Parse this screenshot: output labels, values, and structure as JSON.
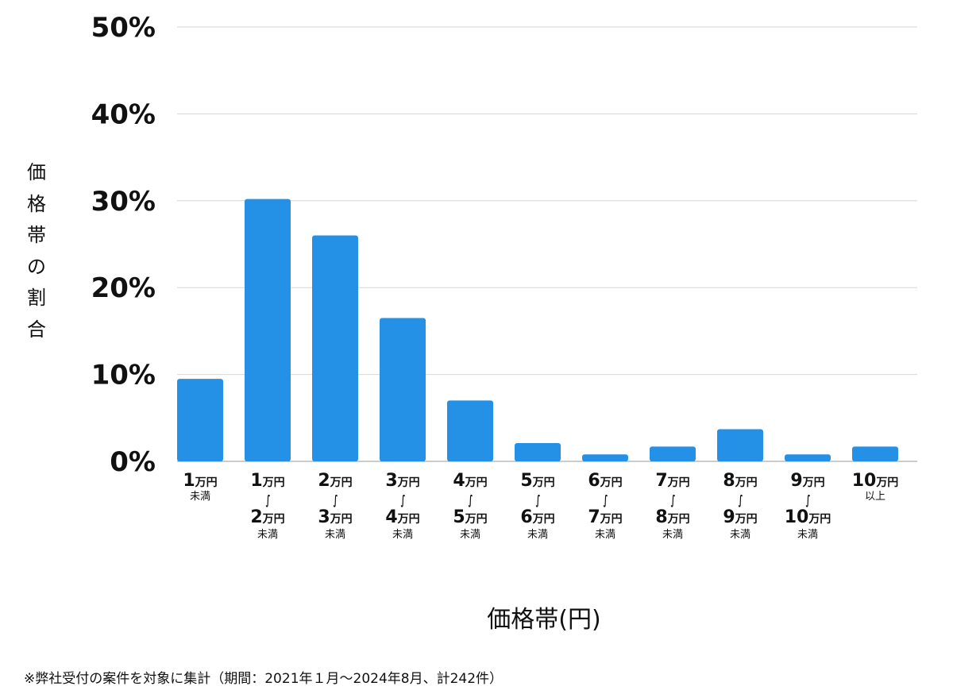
{
  "chart_data": {
    "type": "bar",
    "title": "",
    "ylabel": "価格帯の割合",
    "xlabel": "価格帯(円)",
    "ylim": [
      0,
      50
    ],
    "yticks": [
      "0%",
      "10%",
      "20%",
      "30%",
      "40%",
      "50%"
    ],
    "grid": true,
    "bar_color": "#2491e6",
    "categories": [
      {
        "from": "1",
        "from_unit": "万円",
        "to": "",
        "to_unit": "",
        "suffix": "未満"
      },
      {
        "from": "1",
        "from_unit": "万円",
        "to": "2",
        "to_unit": "万円",
        "suffix": "未満"
      },
      {
        "from": "2",
        "from_unit": "万円",
        "to": "3",
        "to_unit": "万円",
        "suffix": "未満"
      },
      {
        "from": "3",
        "from_unit": "万円",
        "to": "4",
        "to_unit": "万円",
        "suffix": "未満"
      },
      {
        "from": "4",
        "from_unit": "万円",
        "to": "5",
        "to_unit": "万円",
        "suffix": "未満"
      },
      {
        "from": "5",
        "from_unit": "万円",
        "to": "6",
        "to_unit": "万円",
        "suffix": "未満"
      },
      {
        "from": "6",
        "from_unit": "万円",
        "to": "7",
        "to_unit": "万円",
        "suffix": "未満"
      },
      {
        "from": "7",
        "from_unit": "万円",
        "to": "8",
        "to_unit": "万円",
        "suffix": "未満"
      },
      {
        "from": "8",
        "from_unit": "万円",
        "to": "9",
        "to_unit": "万円",
        "suffix": "未満"
      },
      {
        "from": "9",
        "from_unit": "万円",
        "to": "10",
        "to_unit": "万円",
        "suffix": "未満"
      },
      {
        "from": "10",
        "from_unit": "万円",
        "to": "",
        "to_unit": "",
        "suffix": "以上"
      }
    ],
    "range_mark": "∫",
    "values": [
      9.5,
      30.2,
      26.0,
      16.5,
      7.0,
      2.1,
      0.8,
      1.7,
      3.7,
      0.8,
      1.7
    ]
  },
  "footnote": "※弊社受付の案件を対象に集計（期間：2021年１月〜2024年8月、計242件）"
}
